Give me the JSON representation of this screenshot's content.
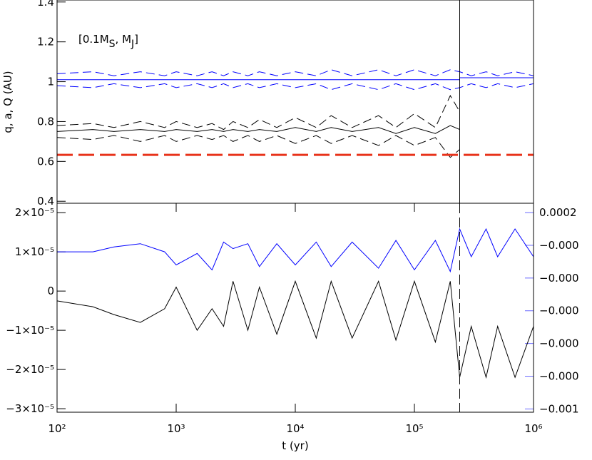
{
  "chart_data": [
    {
      "type": "line",
      "ylabel": "q, a, Q (AU)",
      "annotation": [
        "[0.1M",
        "S",
        ", M",
        "J",
        "]"
      ],
      "xlim": [
        100,
        1000000
      ],
      "log_x": true,
      "ylim": [
        0.39,
        1.41
      ],
      "yticks": [
        0.4,
        0.6,
        0.8,
        1.0,
        1.2,
        1.4
      ],
      "vline": 240000,
      "vline_style": "solid",
      "series": [
        {
          "color": "#0000ff",
          "dash": false,
          "x": [
            100,
            240000,
            240000,
            1000000
          ],
          "values": [
            1.01,
            1.01,
            1.02,
            1.02
          ]
        },
        {
          "color": "#0000ff",
          "dash": true,
          "x": [
            100,
            200,
            300,
            500,
            800,
            1000,
            1500,
            2000,
            2500,
            3000,
            4000,
            5000,
            7000,
            10000,
            15000,
            20000,
            30000,
            50000,
            70000,
            100000,
            150000,
            200000,
            240000,
            300000,
            400000,
            500000,
            700000,
            1000000
          ],
          "values": [
            1.04,
            1.05,
            1.03,
            1.05,
            1.03,
            1.05,
            1.03,
            1.05,
            1.03,
            1.05,
            1.03,
            1.05,
            1.03,
            1.05,
            1.03,
            1.06,
            1.03,
            1.06,
            1.03,
            1.06,
            1.03,
            1.06,
            1.05,
            1.03,
            1.05,
            1.03,
            1.05,
            1.03
          ]
        },
        {
          "color": "#0000ff",
          "dash": true,
          "x": [
            100,
            200,
            300,
            500,
            800,
            1000,
            1500,
            2000,
            2500,
            3000,
            4000,
            5000,
            7000,
            10000,
            15000,
            20000,
            30000,
            50000,
            70000,
            100000,
            150000,
            200000,
            240000,
            300000,
            400000,
            500000,
            700000,
            1000000
          ],
          "values": [
            0.98,
            0.97,
            0.99,
            0.97,
            0.99,
            0.97,
            0.99,
            0.97,
            0.99,
            0.97,
            0.99,
            0.97,
            0.99,
            0.97,
            0.99,
            0.96,
            0.99,
            0.96,
            0.99,
            0.96,
            0.99,
            0.96,
            0.97,
            0.99,
            0.97,
            0.99,
            0.97,
            0.99
          ]
        },
        {
          "color": "#000000",
          "dash": false,
          "x": [
            100,
            200,
            300,
            500,
            800,
            1000,
            1500,
            2000,
            2500,
            3000,
            4000,
            5000,
            7000,
            10000,
            15000,
            20000,
            30000,
            50000,
            70000,
            100000,
            150000,
            200000,
            240000
          ],
          "values": [
            0.75,
            0.76,
            0.75,
            0.76,
            0.75,
            0.76,
            0.75,
            0.76,
            0.75,
            0.76,
            0.75,
            0.76,
            0.75,
            0.77,
            0.75,
            0.77,
            0.75,
            0.77,
            0.74,
            0.77,
            0.74,
            0.78,
            0.76
          ]
        },
        {
          "color": "#000000",
          "dash": true,
          "x": [
            100,
            200,
            300,
            500,
            800,
            1000,
            1500,
            2000,
            2500,
            3000,
            4000,
            5000,
            7000,
            10000,
            15000,
            20000,
            30000,
            50000,
            70000,
            100000,
            150000,
            200000,
            240000
          ],
          "values": [
            0.78,
            0.79,
            0.77,
            0.8,
            0.77,
            0.8,
            0.77,
            0.79,
            0.76,
            0.8,
            0.77,
            0.81,
            0.77,
            0.82,
            0.77,
            0.83,
            0.77,
            0.83,
            0.77,
            0.84,
            0.77,
            0.93,
            0.85
          ]
        },
        {
          "color": "#000000",
          "dash": true,
          "x": [
            100,
            200,
            300,
            500,
            800,
            1000,
            1500,
            2000,
            2500,
            3000,
            4000,
            5000,
            7000,
            10000,
            15000,
            20000,
            30000,
            50000,
            70000,
            100000,
            150000,
            200000,
            240000
          ],
          "values": [
            0.72,
            0.71,
            0.73,
            0.7,
            0.73,
            0.7,
            0.73,
            0.71,
            0.73,
            0.7,
            0.73,
            0.7,
            0.73,
            0.69,
            0.73,
            0.69,
            0.73,
            0.68,
            0.73,
            0.68,
            0.72,
            0.62,
            0.66
          ]
        },
        {
          "color": "#e8321a",
          "dash": true,
          "width": 3,
          "x": [
            100,
            1000000
          ],
          "values": [
            0.633,
            0.633
          ]
        }
      ]
    },
    {
      "type": "line",
      "xlabel": "t (yr)",
      "xlim": [
        100,
        1000000
      ],
      "log_x": true,
      "xticks": [
        {
          "value": 100,
          "label": "10²"
        },
        {
          "value": 1000,
          "label": "10³"
        },
        {
          "value": 10000,
          "label": "10⁴"
        },
        {
          "value": 100000,
          "label": "10⁵"
        },
        {
          "value": 1000000,
          "label": "10⁶"
        }
      ],
      "ylim": [
        -3.09e-05,
        2.24e-05
      ],
      "yticks": [
        {
          "value": 2e-05,
          "label": "2×10⁻⁵"
        },
        {
          "value": 1e-05,
          "label": "1×10⁻⁵"
        },
        0,
        {
          "value": -1e-05,
          "label": "−1×10⁻⁵"
        },
        {
          "value": -2e-05,
          "label": "−2×10⁻⁵"
        },
        {
          "value": -3e-05,
          "label": "−3×10⁻⁵"
        }
      ],
      "y2lim": [
        -0.00102,
        0.000257
      ],
      "y2_color": "#6a6aff",
      "y2ticks": [
        {
          "value": 0.0002,
          "label": "0.0002"
        },
        {
          "value": 0,
          "label": "−0.000"
        },
        {
          "value": -0.0002,
          "label": "−0.000"
        },
        {
          "value": -0.0004,
          "label": "−0.000"
        },
        {
          "value": -0.0006,
          "label": "−0.000"
        },
        {
          "value": -0.0008,
          "label": "−0.000"
        },
        {
          "value": -0.001,
          "label": "−0.001"
        }
      ],
      "vline": 240000,
      "vline_style": "dashed",
      "series": [
        {
          "color": "#0000ff",
          "dash": false,
          "axis": "y2",
          "x": [
            100,
            200,
            300,
            500,
            800,
            1000,
            1500,
            2000,
            2500,
            3000,
            4000,
            5000,
            7000,
            10000,
            15000,
            20000,
            30000,
            50000,
            70000,
            100000,
            150000,
            200000,
            240000,
            300000,
            400000,
            500000,
            700000,
            1000000
          ],
          "values": [
            -4e-05,
            -4e-05,
            -1e-05,
            1e-05,
            -4e-05,
            -0.00012,
            -5e-05,
            -0.00015,
            2e-05,
            -2e-05,
            1e-05,
            -0.00013,
            1e-05,
            -0.00012,
            2e-05,
            -0.00013,
            2e-05,
            -0.00014,
            3e-05,
            -0.00015,
            3e-05,
            -0.00016,
            0.0001,
            -7e-05,
            0.0001,
            -7e-05,
            0.0001,
            -7e-05
          ]
        },
        {
          "color": "#000000",
          "dash": false,
          "x": [
            100,
            200,
            300,
            500,
            800,
            1000,
            1500,
            2000,
            2500,
            3000,
            4000,
            5000,
            7000,
            10000,
            15000,
            20000,
            30000,
            50000,
            70000,
            100000,
            150000,
            200000,
            240000,
            300000,
            400000,
            500000,
            700000,
            1000000
          ],
          "values": [
            -2.5e-06,
            -4e-06,
            -6e-06,
            -8e-06,
            -4.5e-06,
            1e-06,
            -1e-05,
            -4.5e-06,
            -9e-06,
            2.5e-06,
            -1e-05,
            1e-06,
            -1.1e-05,
            2.5e-06,
            -1.2e-05,
            2.5e-06,
            -1.2e-05,
            2.5e-06,
            -1.25e-05,
            2.5e-06,
            -1.3e-05,
            2.5e-06,
            -2.2e-05,
            -9e-06,
            -2.2e-05,
            -9e-06,
            -2.2e-05,
            -9e-06
          ]
        }
      ]
    }
  ]
}
